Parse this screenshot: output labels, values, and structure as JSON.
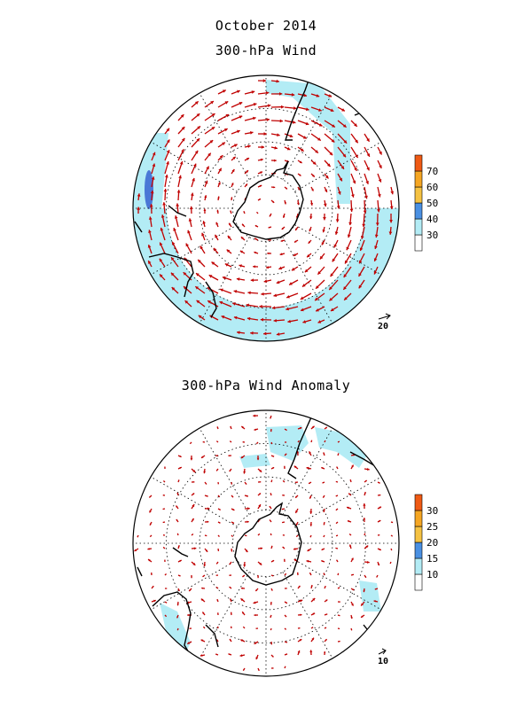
{
  "title": "October 2014",
  "panels": [
    {
      "subtitle": "300-hPa Wind",
      "colorbar": {
        "ticks": [
          "30",
          "40",
          "50",
          "60",
          "70"
        ],
        "colors": [
          "#ffffff",
          "#b3ecf5",
          "#4a90e2",
          "#f5c242",
          "#f5a623",
          "#ef5a14"
        ]
      },
      "reference_vector": "20"
    },
    {
      "subtitle": "300-hPa Wind Anomaly",
      "colorbar": {
        "ticks": [
          "10",
          "15",
          "20",
          "25",
          "30"
        ],
        "colors": [
          "#ffffff",
          "#b3ecf5",
          "#4a90e2",
          "#f5c242",
          "#f5a623",
          "#ef5a14"
        ]
      },
      "reference_vector": "10"
    }
  ],
  "colors": {
    "vector": "#c00000",
    "shading": "#b3ecf5",
    "strong": "#4a78d6",
    "coast": "#000000"
  }
}
